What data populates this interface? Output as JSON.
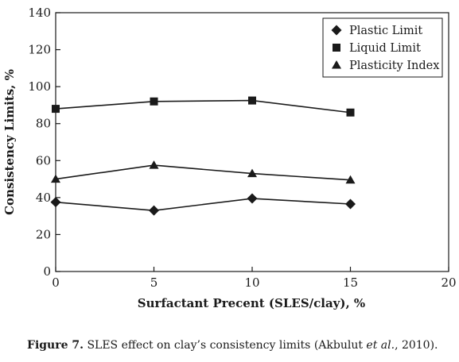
{
  "chart_data": {
    "type": "line",
    "title": "",
    "xlabel": "Surfactant Precent (SLES/clay), %",
    "ylabel": "Consistency Limits, %",
    "xlim": [
      0,
      20
    ],
    "ylim": [
      0,
      140
    ],
    "x_ticks": [
      "0",
      "5",
      "10",
      "15",
      "20"
    ],
    "y_ticks": [
      "0",
      "20",
      "40",
      "60",
      "80",
      "100",
      "120",
      "140"
    ],
    "grid": false,
    "legend_position": "top-right",
    "x": [
      0,
      5,
      10,
      15
    ],
    "series": [
      {
        "name": "Plastic Limit",
        "marker": "diamond",
        "values": [
          37.5,
          33,
          39.5,
          36.5
        ]
      },
      {
        "name": "Liquid Limit",
        "marker": "square",
        "values": [
          88,
          92,
          92.5,
          86
        ]
      },
      {
        "name": "Plasticity Index",
        "marker": "triangle",
        "values": [
          50,
          57.5,
          53,
          49.5
        ]
      }
    ],
    "colors": {
      "line": "#1a1a1a",
      "marker": "#1a1a1a"
    }
  },
  "caption": {
    "label": "Figure 7.",
    "text_before": " SLES effect on clay’s consistency limits (Akbulut ",
    "text_italic": "et al.",
    "text_after": ", 2010)."
  }
}
